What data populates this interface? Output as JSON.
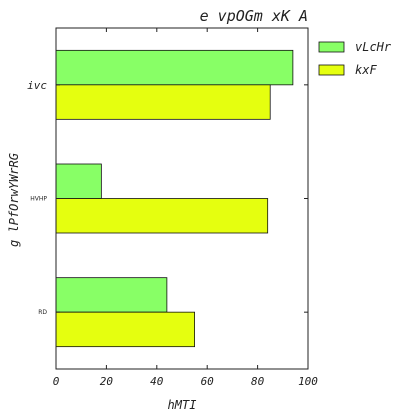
{
  "chart_data": {
    "type": "bar",
    "orientation": "horizontal",
    "title": "e vpOGm xK A",
    "xlabel": "hMTI",
    "ylabel": "g lPfOrwYWrRG",
    "xlim": [
      0,
      100
    ],
    "xticks": [
      "0",
      "20",
      "40",
      "60",
      "80",
      "100"
    ],
    "categories": [
      "ivc",
      "HVHP",
      "RD"
    ],
    "series": [
      {
        "name": "vLcHr",
        "color": "#88ff66",
        "values": [
          94,
          18,
          44
        ]
      },
      {
        "name": "kxF",
        "color": "#e5ff0f",
        "values": [
          85,
          84,
          55
        ]
      }
    ],
    "legend_position": "outside-top-right",
    "grid": false
  }
}
